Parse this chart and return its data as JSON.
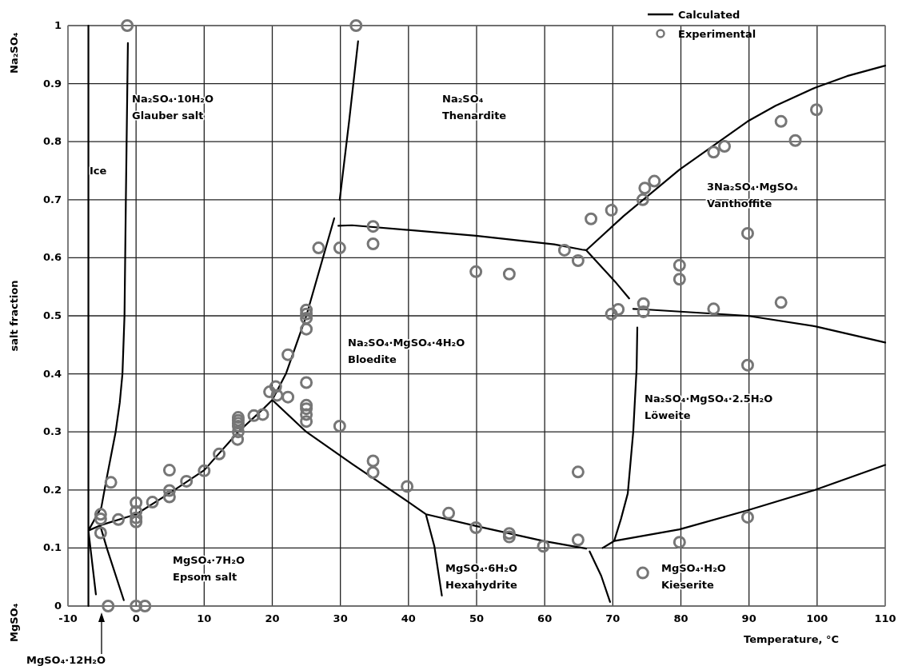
{
  "chart_data": {
    "type": "line",
    "xlabel": "Temperature, °C",
    "ylabel": "salt fraction",
    "xlim": [
      -10,
      110
    ],
    "xticks": [
      -10,
      0,
      10,
      20,
      30,
      40,
      50,
      60,
      70,
      80,
      90,
      100,
      110
    ],
    "ylim": [
      0,
      1
    ],
    "yticks": [
      0,
      0.1,
      0.2,
      0.3,
      0.4,
      0.5,
      0.6,
      0.7,
      0.8,
      0.9,
      1
    ],
    "grid": true,
    "legend": "top right",
    "series": [
      {
        "name": "Calculated",
        "color": "#000000",
        "marker": "none",
        "line_style": "solid",
        "x": [
          -7,
          -7,
          null,
          -1.2,
          -1.5,
          -1.7,
          -2.0,
          -2.4,
          -3.0,
          -4.4,
          -5.1,
          -7,
          null,
          -7,
          -5.9,
          null,
          -5.3,
          -4.3,
          -1.8,
          null,
          -7,
          -5,
          0,
          5,
          10,
          15,
          18.7,
          20,
          22,
          23.5,
          25,
          29.1,
          null,
          29.9,
          31.3,
          32.6,
          null,
          29.7,
          31.7,
          49.9,
          61.4,
          65.5,
          66.1,
          71.6,
          79.8,
          89.8,
          93.9,
          99.7,
          104.4,
          110,
          null,
          66.1,
          70.4,
          72.4,
          null,
          73,
          74.7,
          89.8,
          99.7,
          110,
          null,
          70.2,
          71.2,
          72.2,
          73,
          73.5,
          73.6,
          null,
          70.2,
          79.8,
          89.8,
          99.7,
          110,
          null,
          20,
          25,
          31.7,
          39.9,
          42.6,
          49.9,
          59.8,
          66.1,
          null,
          68.5,
          70.2,
          null,
          42.6,
          43.8,
          44.9,
          null,
          66.6,
          68.3,
          69.6
        ],
        "values": [
          0,
          1,
          null,
          0.97,
          0.7,
          0.5,
          0.4,
          0.35,
          0.3,
          0.215,
          0.17,
          0.13,
          null,
          0.13,
          0.02,
          null,
          0.14,
          0.1,
          0.01,
          null,
          0.13,
          0.14,
          0.158,
          0.195,
          0.234,
          0.3,
          0.34,
          0.355,
          0.4,
          0.45,
          0.5,
          0.668,
          null,
          0.7,
          0.837,
          0.973,
          null,
          0.655,
          0.656,
          0.638,
          0.623,
          0.614,
          0.613,
          0.672,
          0.752,
          0.835,
          0.862,
          0.893,
          0.913,
          0.931,
          null,
          0.613,
          0.558,
          0.53,
          null,
          0.512,
          0.511,
          0.5,
          0.482,
          0.454,
          null,
          0.112,
          0.15,
          0.194,
          0.3,
          0.41,
          0.48,
          null,
          0.112,
          0.132,
          0.165,
          0.2,
          0.243,
          null,
          0.355,
          0.3,
          0.245,
          0.18,
          0.158,
          0.138,
          0.112,
          0.099,
          null,
          0.1,
          0.112,
          null,
          0.156,
          0.103,
          0.018,
          null,
          0.094,
          0.052,
          0.007
        ]
      },
      {
        "name": "Experimental",
        "type": "scatter",
        "color": "#767676",
        "marker": "circle",
        "x": [
          -1.3,
          32.3,
          -3.7,
          -5.2,
          -5.2,
          -5.2,
          -2.6,
          0,
          0,
          0,
          0,
          2.4,
          4.9,
          4.9,
          4.9,
          7.4,
          10,
          12.2,
          14.9,
          15,
          15,
          15,
          15,
          15,
          17.3,
          18.6,
          19.6,
          20.5,
          20.7,
          22.3,
          22.3,
          25,
          25,
          25,
          25,
          25,
          25,
          25,
          25,
          25,
          29.9,
          26.8,
          29.9,
          34.8,
          34.8,
          49.9,
          54.8,
          62.9,
          64.9,
          66.8,
          69.8,
          69.8,
          70.8,
          34.8,
          34.8,
          39.8,
          45.9,
          49.9,
          54.8,
          54.8,
          59.8,
          64.9,
          64.9,
          74.4,
          74.7,
          76.1,
          84.8,
          86.4,
          94.7,
          96.8,
          99.9,
          89.8,
          79.8,
          79.8,
          74.5,
          74.5,
          84.8,
          94.7,
          89.8,
          89.8,
          79.8,
          74.4,
          -4.1,
          0,
          1.3
        ],
        "values": [
          1,
          1,
          0.213,
          0.158,
          0.15,
          0.126,
          0.149,
          0.178,
          0.163,
          0.152,
          0.145,
          0.179,
          0.234,
          0.199,
          0.188,
          0.215,
          0.233,
          0.262,
          0.287,
          0.325,
          0.32,
          0.315,
          0.31,
          0.3,
          0.328,
          0.33,
          0.369,
          0.378,
          0.363,
          0.36,
          0.433,
          0.385,
          0.346,
          0.34,
          0.33,
          0.318,
          0.51,
          0.503,
          0.496,
          0.477,
          0.31,
          0.617,
          0.617,
          0.654,
          0.624,
          0.576,
          0.572,
          0.613,
          0.595,
          0.667,
          0.682,
          0.503,
          0.511,
          0.25,
          0.23,
          0.206,
          0.16,
          0.135,
          0.125,
          0.119,
          0.103,
          0.231,
          0.114,
          0.7,
          0.72,
          0.732,
          0.782,
          0.792,
          0.835,
          0.802,
          0.855,
          0.642,
          0.587,
          0.563,
          0.521,
          0.507,
          0.512,
          0.523,
          0.415,
          0.153,
          0.11,
          0.057,
          0,
          0,
          0
        ]
      }
    ],
    "annotations": [
      "Na₂SO₄",
      "MgSO₄",
      "MgSO₄·12H₂O",
      "Ice",
      "Na₂SO₄·10H₂O\nGlauber salt",
      "Na₂SO₄\nThenardite",
      "3Na₂SO₄·MgSO₄\nVanthoffite",
      "Na₂SO₄·MgSO₄·4H₂O\nBloedite",
      "Na₂SO₄·MgSO₄·2.5H₂O\nLöweite",
      "MgSO₄·7H₂O\nEpsom salt",
      "MgSO₄·6H₂O\nHexahydrite",
      "MgSO₄·H₂O\nKieserite"
    ]
  }
}
